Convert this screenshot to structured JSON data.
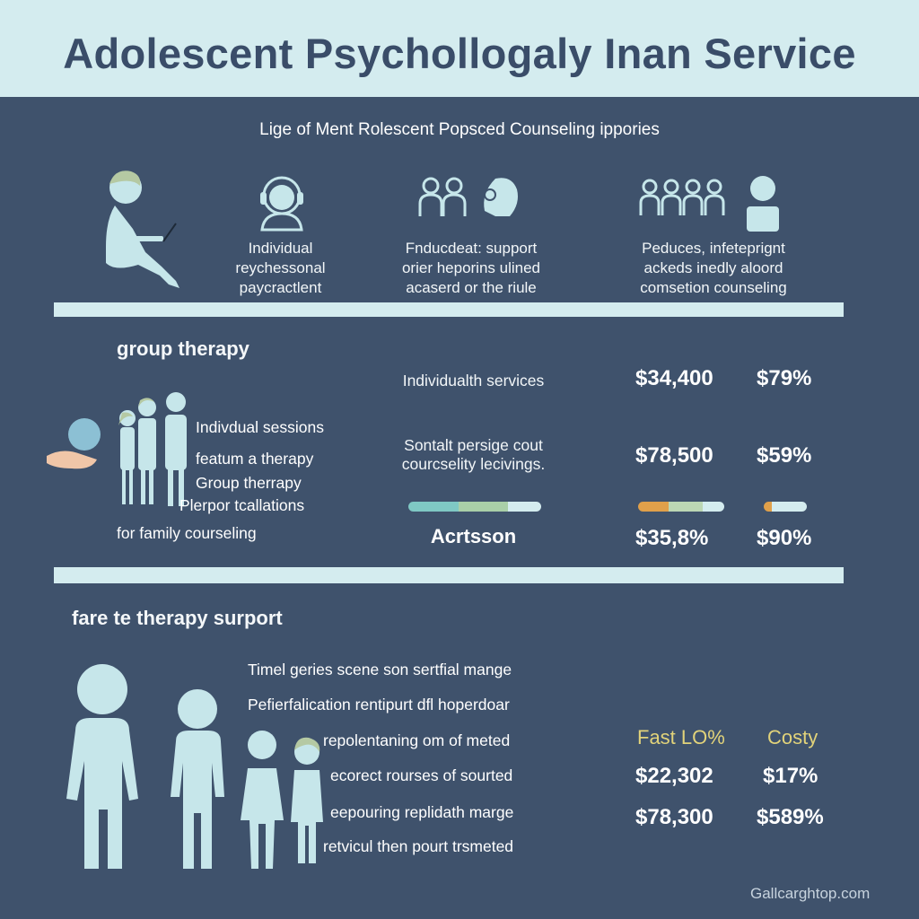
{
  "header": {
    "title": "Adolescent Psychollogaly Inan Service"
  },
  "subtitle": "Lige of Ment Rolescent Popsced Counseling ippories",
  "top_columns": [
    {
      "icon": "laptop-person-icon",
      "lines": [
        "Individual",
        "reychessonal",
        "paycractlent"
      ]
    },
    {
      "icon": "pair-people-icon",
      "lines": [
        "Fnducdeat: support",
        "orier heporins ulined",
        "acaserd or the riule"
      ]
    },
    {
      "icon": "group-people-icon",
      "lines": [
        "Peduces, infeteprignt",
        "ackeds inedly aloord",
        "comsetion counseling"
      ]
    }
  ],
  "section1": {
    "title": "group therapy",
    "list": [
      "Indivdual sessions",
      "featum a therapy",
      "Group therrapy",
      "Plerpor tcallations",
      "for family courseling"
    ],
    "row1": {
      "label": "Individualth services",
      "v1": "$34,400",
      "v2": "$79%"
    },
    "row2": {
      "label_line1": "Sontalt persige cout",
      "label_line2": "courcselity lecivings.",
      "v1": "$78,500",
      "v2": "$59%"
    },
    "row3": {
      "label": "Acrtsson",
      "v1": "$35,8%",
      "v2": "$90%"
    }
  },
  "section2": {
    "title": "fare te therapy surport",
    "list": [
      "Timel geries scene son sertfial mange",
      "Pefierfalication rentipurt dfl hoperdoar",
      "repolentaning om of meted",
      "ecorect rourses of sourted",
      "eepouring replidath marge",
      "retvicul then pourt trsmeted"
    ],
    "col_headers": [
      "Fast LO%",
      "Costy"
    ],
    "rows": [
      {
        "v1": "$22,302",
        "v2": "$17%"
      },
      {
        "v1": "$78,300",
        "v2": "$589%"
      }
    ]
  },
  "watermark": "Gallcarghtop.com",
  "colors": {
    "background": "#3f526c",
    "panel": "#d4ecef",
    "figure": "#c6e6ea",
    "accent_yellow": "#e2d37a",
    "bar_teal": "#7fc8c4",
    "bar_orange": "#e0a04a"
  }
}
